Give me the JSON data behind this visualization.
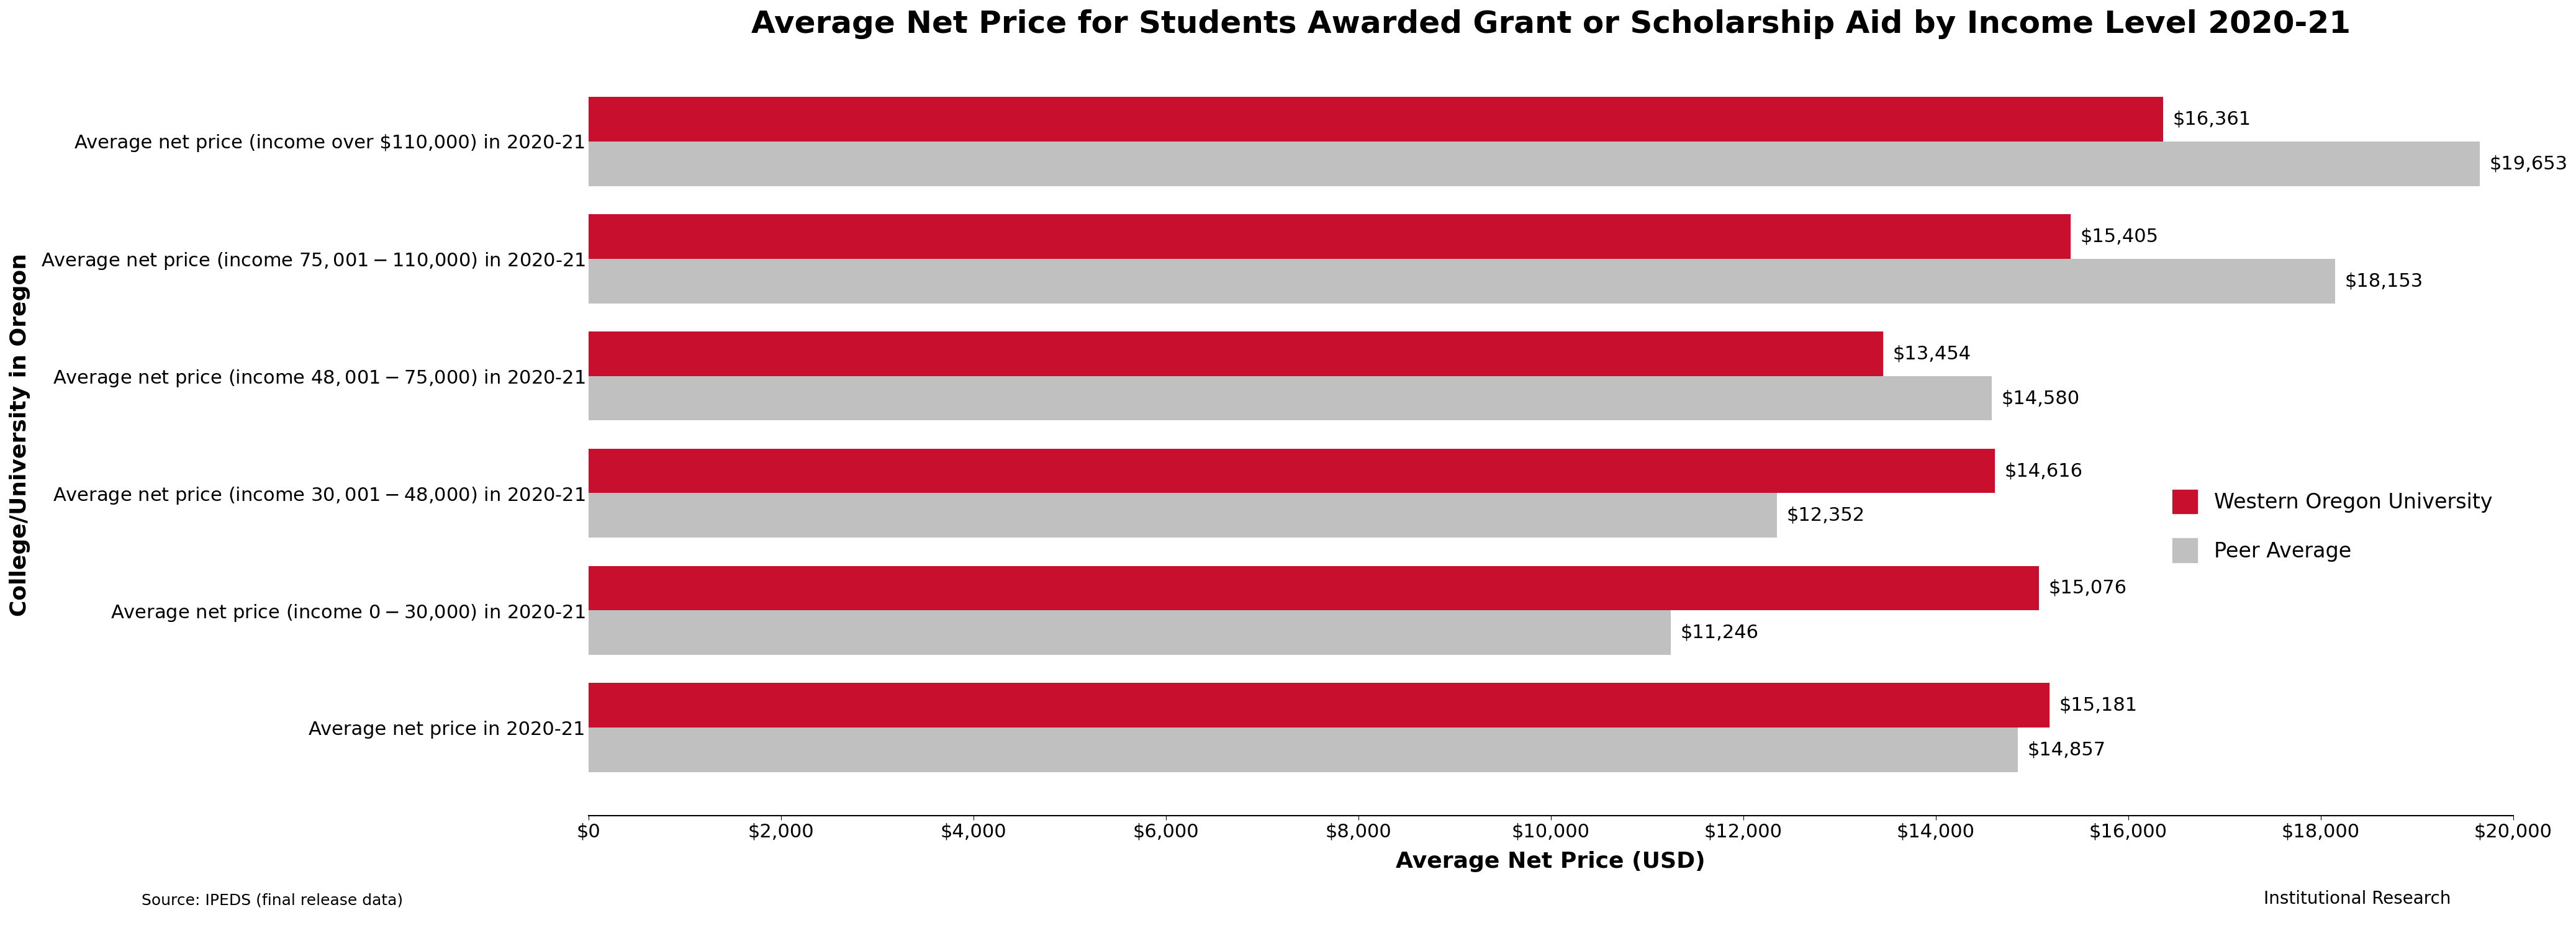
{
  "title": "Average Net Price for Students Awarded Grant or Scholarship Aid by Income Level 2020-21",
  "categories": [
    "Average net price (income over $110,000) in 2020-21",
    "Average net price (income $75,001-$110,000) in 2020-21",
    "Average net price (income $48,001-$75,000) in 2020-21",
    "Average net price (income $30,001-$48,000) in 2020-21",
    "Average net price (income $0-$30,000) in 2020-21",
    "Average net price in 2020-21"
  ],
  "wou_values": [
    16361,
    15405,
    13454,
    14616,
    15076,
    15181
  ],
  "peer_values": [
    19653,
    18153,
    14580,
    12352,
    11246,
    14857
  ],
  "wou_color": "#C8102E",
  "peer_color": "#C0C0C0",
  "wou_label": "Western Oregon University",
  "peer_label": "Peer Average",
  "xlabel": "Average Net Price (USD)",
  "ylabel": "College/University in Oregon",
  "xlim": [
    0,
    20000
  ],
  "xticks": [
    0,
    2000,
    4000,
    6000,
    8000,
    10000,
    12000,
    14000,
    16000,
    18000,
    20000
  ],
  "xtick_labels": [
    "$0",
    "$2,000",
    "$4,000",
    "$6,000",
    "$8,000",
    "$10,000",
    "$12,000",
    "$14,000",
    "$16,000",
    "$18,000",
    "$20,000"
  ],
  "source_text": "Source: IPEDS (final release data)",
  "bar_height": 0.38,
  "title_fontsize": 36,
  "axis_label_fontsize": 26,
  "tick_fontsize": 22,
  "annotation_fontsize": 22,
  "legend_fontsize": 24,
  "ylabel_fontsize": 26,
  "category_fontsize": 22
}
